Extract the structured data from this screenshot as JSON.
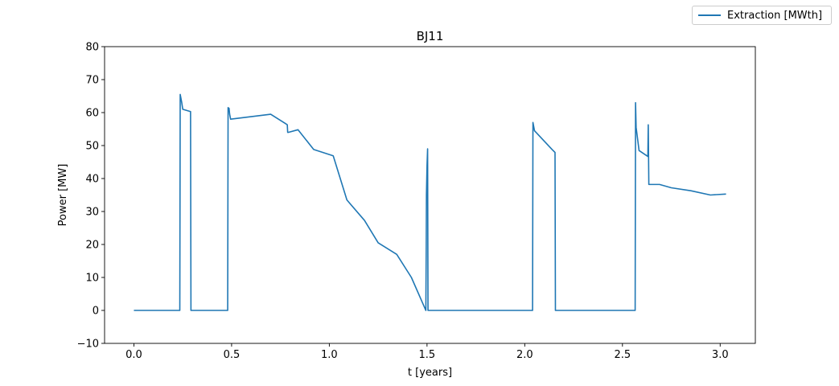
{
  "chart_data": {
    "type": "line",
    "title": "BJ11",
    "xlabel": "t [years]",
    "ylabel": "Power [MW]",
    "xlim": [
      -0.15,
      3.18
    ],
    "ylim": [
      -10,
      80
    ],
    "xticks": [
      0.0,
      0.5,
      1.0,
      1.5,
      2.0,
      2.5,
      3.0
    ],
    "xtick_labels": [
      "0.0",
      "0.5",
      "1.0",
      "1.5",
      "2.0",
      "2.5",
      "3.0"
    ],
    "yticks": [
      -10,
      0,
      10,
      20,
      30,
      40,
      50,
      60,
      70,
      80
    ],
    "ytick_labels": [
      "−10",
      "0",
      "10",
      "20",
      "30",
      "40",
      "50",
      "60",
      "70",
      "80"
    ],
    "grid": false,
    "legend_position": "top-right",
    "series": [
      {
        "name": "Extraction [MWth]",
        "color": "#1f77b4",
        "x": [
          0.0,
          0.235,
          0.237,
          0.245,
          0.25,
          0.29,
          0.292,
          0.48,
          0.482,
          0.487,
          0.49,
          0.495,
          0.7,
          0.78,
          0.785,
          0.787,
          0.79,
          0.84,
          0.92,
          1.02,
          1.09,
          1.1,
          1.18,
          1.25,
          1.345,
          1.42,
          1.494,
          1.496,
          1.497,
          1.5,
          1.503,
          1.505,
          1.507,
          2.04,
          2.042,
          2.05,
          2.14,
          2.155,
          2.157,
          2.565,
          2.567,
          2.57,
          2.585,
          2.63,
          2.632,
          2.635,
          2.637,
          2.69,
          2.75,
          2.85,
          2.95,
          3.03
        ],
        "y": [
          0,
          0,
          65.5,
          63,
          61,
          60.3,
          0,
          0,
          61.5,
          61.3,
          59.5,
          58,
          59.5,
          56.5,
          56.3,
          54,
          54,
          54.8,
          48.8,
          46.9,
          33.5,
          32.8,
          27.3,
          20.5,
          17,
          10,
          0,
          20,
          35,
          44,
          49,
          0,
          0,
          0,
          57,
          54.5,
          48.8,
          47.9,
          0,
          0,
          63,
          55.5,
          48.5,
          46.7,
          56.3,
          38.2,
          38.2,
          38.2,
          37.2,
          36.3,
          35,
          35.3
        ]
      }
    ]
  }
}
